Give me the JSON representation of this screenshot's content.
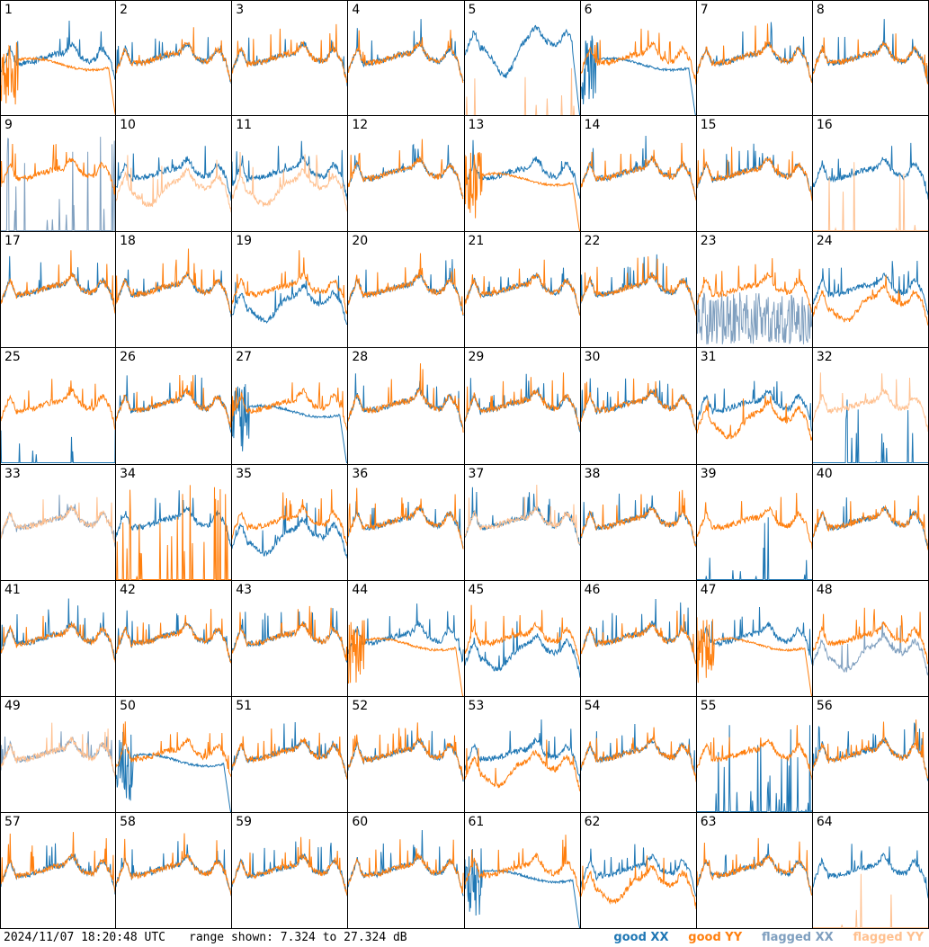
{
  "footer": {
    "timestamp": "2024/11/07 18:20:48 UTC",
    "range": "range shown: 7.324 to 27.324 dB"
  },
  "legend": {
    "good_xx": "good XX",
    "good_yy": "good YY",
    "flagged_xx": "flagged XX",
    "flagged_yy": "flagged YY"
  },
  "colors": {
    "good_xx": "#1f77b4",
    "good_yy": "#ff7f0e",
    "flagged_xx": "#7f9fbf",
    "flagged_yy": "#ffc08f"
  },
  "chart_data": {
    "type": "line",
    "ylim": [
      7.324,
      27.324
    ],
    "grid": {
      "rows": 8,
      "cols": 8
    },
    "panels": [
      {
        "id": "1",
        "xx": "normal",
        "yy": "bad"
      },
      {
        "id": "2",
        "xx": "normal",
        "yy": "normal"
      },
      {
        "id": "3",
        "xx": "normal",
        "yy": "normal"
      },
      {
        "id": "4",
        "xx": "normal",
        "yy": "normal"
      },
      {
        "id": "5",
        "xx": "highdip",
        "yy": "flat",
        "yyFlag": true
      },
      {
        "id": "6",
        "xx": "bad",
        "yy": "normal"
      },
      {
        "id": "7",
        "xx": "normal",
        "yy": "normal"
      },
      {
        "id": "8",
        "xx": "normal",
        "yy": "normal"
      },
      {
        "id": "9",
        "xx": "spikes",
        "yy": "normal",
        "xxFlag": true
      },
      {
        "id": "10",
        "xx": "normal",
        "yy": "low",
        "yyFlag": true
      },
      {
        "id": "11",
        "xx": "normal",
        "yy": "low",
        "yyFlag": true
      },
      {
        "id": "12",
        "xx": "normal",
        "yy": "normal"
      },
      {
        "id": "13",
        "xx": "normal",
        "yy": "bad"
      },
      {
        "id": "14",
        "xx": "normal",
        "yy": "normal"
      },
      {
        "id": "15",
        "xx": "normal",
        "yy": "normal"
      },
      {
        "id": "16",
        "xx": "normal",
        "yy": "flat",
        "yyFlag": true
      },
      {
        "id": "17",
        "xx": "normal",
        "yy": "normal"
      },
      {
        "id": "18",
        "xx": "normal",
        "yy": "normal"
      },
      {
        "id": "19",
        "xx": "low",
        "yy": "normal"
      },
      {
        "id": "20",
        "xx": "normal",
        "yy": "normal"
      },
      {
        "id": "21",
        "xx": "normal",
        "yy": "normal"
      },
      {
        "id": "22",
        "xx": "normal",
        "yy": "normal"
      },
      {
        "id": "23",
        "xx": "noisy",
        "yy": "normal",
        "xxFlag": true
      },
      {
        "id": "24",
        "xx": "normal",
        "yy": "low"
      },
      {
        "id": "25",
        "xx": "flat",
        "yy": "normal"
      },
      {
        "id": "26",
        "xx": "normal",
        "yy": "normal"
      },
      {
        "id": "27",
        "xx": "bad",
        "yy": "normal"
      },
      {
        "id": "28",
        "xx": "normal",
        "yy": "normal"
      },
      {
        "id": "29",
        "xx": "normal",
        "yy": "normal"
      },
      {
        "id": "30",
        "xx": "normal",
        "yy": "normal"
      },
      {
        "id": "31",
        "xx": "normal",
        "yy": "low"
      },
      {
        "id": "32",
        "xx": "flat",
        "yy": "normal",
        "yyFlag": true
      },
      {
        "id": "33",
        "xx": "normal",
        "yy": "normal",
        "xxFlag": true,
        "yyFlag": true
      },
      {
        "id": "34",
        "xx": "normal",
        "yy": "spikes"
      },
      {
        "id": "35",
        "xx": "low",
        "yy": "normal"
      },
      {
        "id": "36",
        "xx": "normal",
        "yy": "normal"
      },
      {
        "id": "37",
        "xx": "normal",
        "yy": "normal",
        "yyFlag": true
      },
      {
        "id": "38",
        "xx": "normal",
        "yy": "normal"
      },
      {
        "id": "39",
        "xx": "flat",
        "yy": "normal"
      },
      {
        "id": "40",
        "xx": "normal",
        "yy": "normal"
      },
      {
        "id": "41",
        "xx": "normal",
        "yy": "normal"
      },
      {
        "id": "42",
        "xx": "normal",
        "yy": "normal"
      },
      {
        "id": "43",
        "xx": "normal",
        "yy": "normal"
      },
      {
        "id": "44",
        "xx": "normal",
        "yy": "bad"
      },
      {
        "id": "45",
        "xx": "low",
        "yy": "normal"
      },
      {
        "id": "46",
        "xx": "normal",
        "yy": "normal"
      },
      {
        "id": "47",
        "xx": "normal",
        "yy": "bad"
      },
      {
        "id": "48",
        "xx": "low",
        "yy": "normal",
        "xxFlag": true
      },
      {
        "id": "49",
        "xx": "normal",
        "yy": "normal",
        "xxFlag": true,
        "yyFlag": true
      },
      {
        "id": "50",
        "xx": "bad",
        "yy": "normal"
      },
      {
        "id": "51",
        "xx": "normal",
        "yy": "normal"
      },
      {
        "id": "52",
        "xx": "normal",
        "yy": "normal"
      },
      {
        "id": "53",
        "xx": "normal",
        "yy": "low"
      },
      {
        "id": "54",
        "xx": "normal",
        "yy": "normal"
      },
      {
        "id": "55",
        "xx": "spikes",
        "yy": "normal"
      },
      {
        "id": "56",
        "xx": "normal",
        "yy": "normal"
      },
      {
        "id": "57",
        "xx": "normal",
        "yy": "normal"
      },
      {
        "id": "58",
        "xx": "normal",
        "yy": "normal"
      },
      {
        "id": "59",
        "xx": "normal",
        "yy": "normal"
      },
      {
        "id": "60",
        "xx": "normal",
        "yy": "normal"
      },
      {
        "id": "61",
        "xx": "bad",
        "yy": "normal"
      },
      {
        "id": "62",
        "xx": "normal",
        "yy": "low"
      },
      {
        "id": "63",
        "xx": "normal",
        "yy": "normal"
      },
      {
        "id": "64",
        "xx": "normal",
        "yy": "flat",
        "yyFlag": true
      }
    ]
  }
}
